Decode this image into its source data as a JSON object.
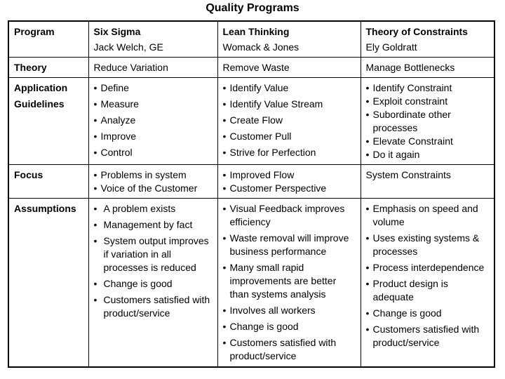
{
  "title": "Quality Programs",
  "header": {
    "row_label": "Program",
    "programs": [
      {
        "name": "Six Sigma",
        "author": "Jack Welch, GE"
      },
      {
        "name": "Lean Thinking",
        "author": "Womack & Jones"
      },
      {
        "name": "Theory of Constraints",
        "author": "Ely Goldratt"
      }
    ]
  },
  "theory": {
    "label": "Theory",
    "values": [
      "Reduce Variation",
      "Remove Waste",
      "Manage Bottlenecks"
    ]
  },
  "guidelines": {
    "label_line1": "Application",
    "label_line2": "Guidelines",
    "six_sigma": [
      "Define",
      "Measure",
      "Analyze",
      "Improve",
      "Control"
    ],
    "lean": [
      "Identify Value",
      "Identify Value Stream",
      "Create Flow",
      "Customer Pull",
      "Strive for Perfection"
    ],
    "toc": [
      "Identify Constraint",
      "Exploit constraint",
      "Subordinate other processes",
      "Elevate Constraint",
      "Do it again"
    ]
  },
  "focus": {
    "label": "Focus",
    "six_sigma": [
      "Problems in system",
      "Voice of the Customer"
    ],
    "lean": [
      "Improved Flow",
      "Customer Perspective"
    ],
    "toc": "System Constraints"
  },
  "assumptions": {
    "label": "Assumptions",
    "six_sigma": [
      "A problem exists",
      "Management by fact",
      "System output improves if variation in all processes is reduced",
      "Change is good",
      "Customers satisfied with product/service"
    ],
    "lean": [
      "Visual Feedback improves efficiency",
      "Waste removal will improve business performance",
      "Many small rapid improvements are better than systems analysis",
      "Involves all workers",
      "Change is good",
      "Customers satisfied with product/service"
    ],
    "toc": [
      "Emphasis on speed and volume",
      "Uses existing systems & processes",
      "Process interdependence",
      "Product design is adequate",
      "Change is good",
      "Customers satisfied with product/service"
    ]
  }
}
